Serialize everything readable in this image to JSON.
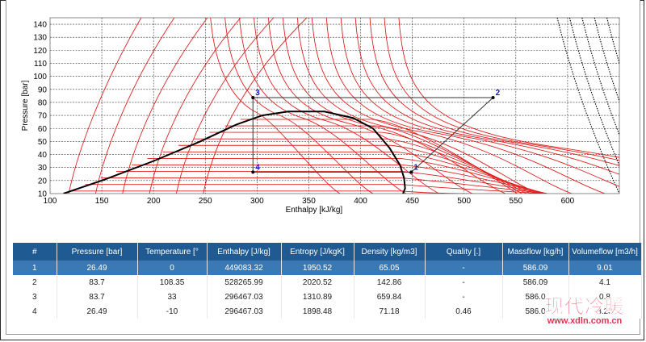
{
  "chart_data": {
    "type": "line",
    "title": "",
    "xlabel": "Enthalpy [kJ/kg]",
    "ylabel": "Pressure [bar]",
    "xlim": [
      100,
      650
    ],
    "ylim": [
      10,
      145
    ],
    "x_ticks": [
      "100",
      "150",
      "200",
      "250",
      "300",
      "350",
      "400",
      "450",
      "500",
      "550",
      "600"
    ],
    "y_ticks": [
      "10",
      "20",
      "30",
      "40",
      "50",
      "60",
      "70",
      "80",
      "90",
      "100",
      "110",
      "120",
      "130",
      "140"
    ],
    "grid": true,
    "colors": {
      "isotherm": "#e02020",
      "dome": "#000000",
      "cycle": "#333333",
      "isochore": "#000000",
      "point_label": "#1a1ad0"
    },
    "dome": [
      [
        113,
        10
      ],
      [
        150,
        20
      ],
      [
        200,
        35
      ],
      [
        245,
        50
      ],
      [
        280,
        63
      ],
      [
        305,
        70
      ],
      [
        330,
        73
      ],
      [
        365,
        73
      ],
      [
        393,
        68
      ],
      [
        412,
        60
      ],
      [
        428,
        45
      ],
      [
        438,
        32
      ],
      [
        442,
        22
      ],
      [
        443,
        14
      ],
      [
        441,
        10
      ]
    ],
    "cycle": {
      "points": [
        {
          "label": "1",
          "h": 449,
          "p": 26.5
        },
        {
          "label": "2",
          "h": 528,
          "p": 83.7
        },
        {
          "label": "3",
          "h": 296,
          "p": 83.7
        },
        {
          "label": "4",
          "h": 296,
          "p": 26.5
        }
      ]
    }
  },
  "table": {
    "headers": [
      "#",
      "Pressure [bar]",
      "Temperature [°",
      "Enthalpy [J/kg]",
      "Entropy [J/kgK]",
      "Density [kg/m3]",
      "Quality [.]",
      "Massflow [kg/h]",
      "Volumeflow [m3/h]"
    ],
    "rows": [
      [
        "1",
        "26.49",
        "0",
        "449083.32",
        "1950.52",
        "65.05",
        "-",
        "586.09",
        "9.01"
      ],
      [
        "2",
        "83.7",
        "108.35",
        "528265.99",
        "2020.52",
        "142.86",
        "-",
        "586.09",
        "4.1"
      ],
      [
        "3",
        "83.7",
        "33",
        "296467.03",
        "1310.89",
        "659.84",
        "-",
        "586.0",
        "0.8"
      ],
      [
        "4",
        "26.49",
        "-10",
        "296467.03",
        "1898.48",
        "71.18",
        "0.46",
        "586.0",
        "8.23"
      ]
    ],
    "selected_row": 0
  },
  "watermark": {
    "text": "现代冷暖",
    "url": "www.xdln.com.cn"
  }
}
